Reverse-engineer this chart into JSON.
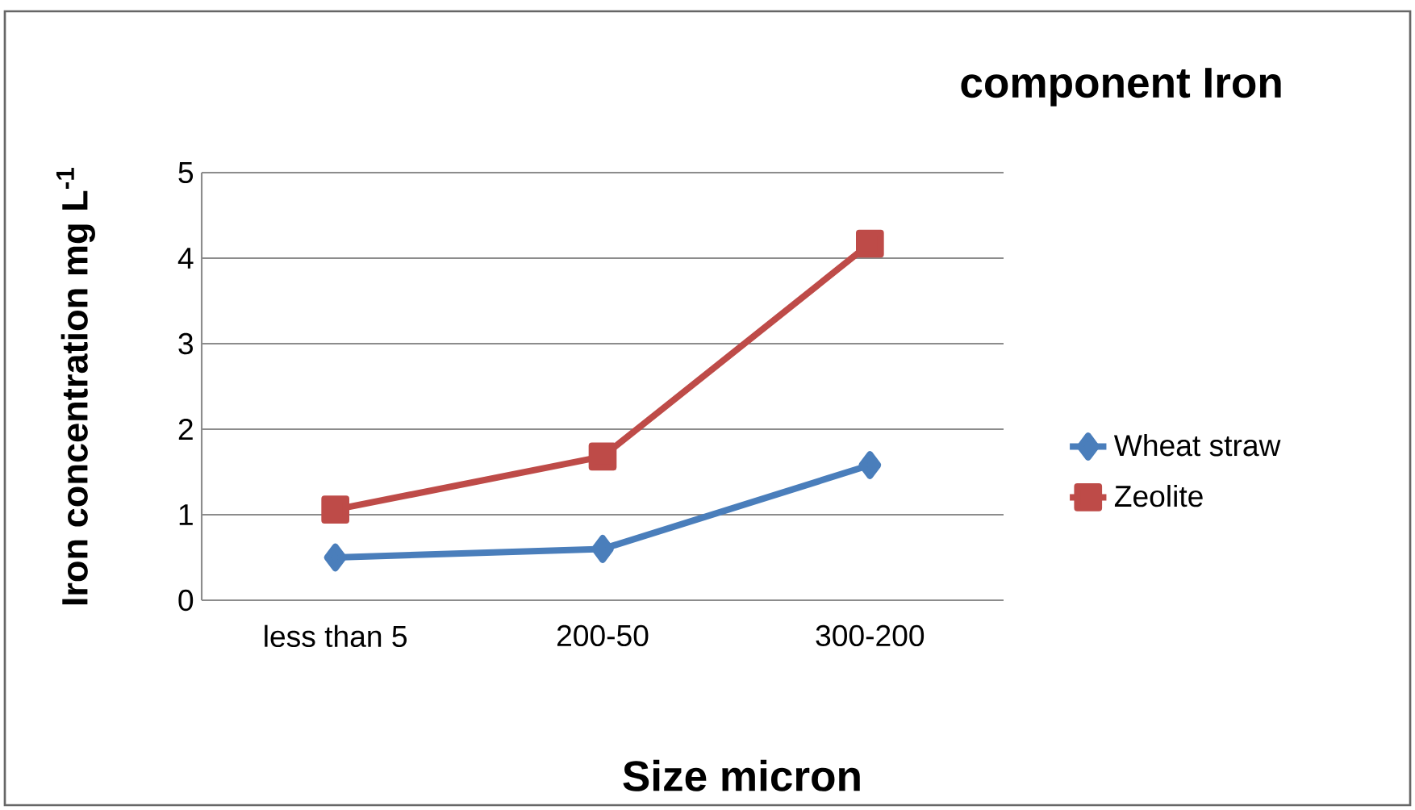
{
  "chart_data": {
    "type": "line",
    "title": "component Iron",
    "xlabel": "Size micron",
    "ylabel": "Iron concentration mg L$^{-1}$",
    "categories": [
      "less than 5",
      "200-50",
      "300-200"
    ],
    "series": [
      {
        "name": "Wheat straw",
        "color": "#4a7ebb",
        "marker": "diamond",
        "values": [
          0.5,
          0.6,
          1.58
        ]
      },
      {
        "name": "Zeolite",
        "color": "#be4b48",
        "marker": "square",
        "values": [
          1.06,
          1.68,
          4.17
        ]
      }
    ],
    "ylim": [
      0,
      5
    ],
    "yticks": [
      0,
      1,
      2,
      3,
      4,
      5
    ],
    "grid": "y",
    "legend": "right",
    "line_style": "solid"
  }
}
